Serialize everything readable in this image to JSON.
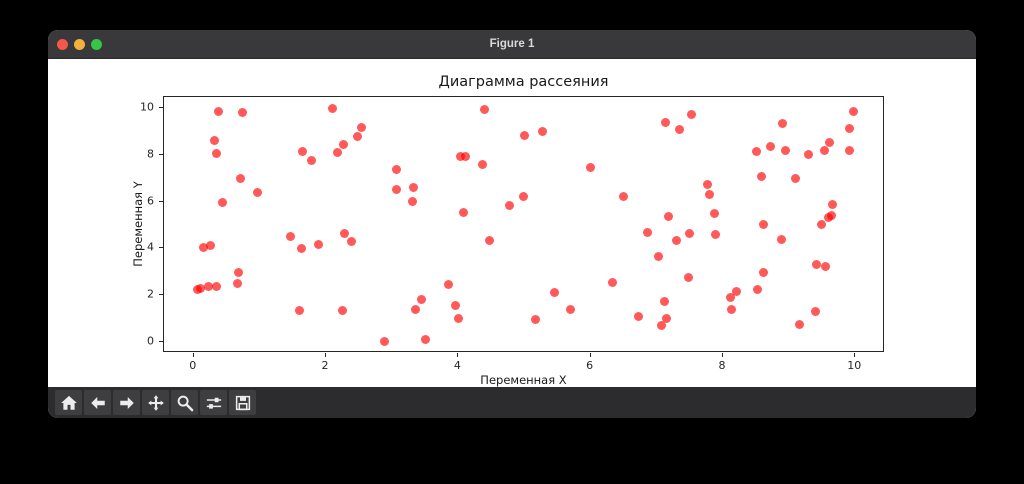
{
  "window": {
    "title": "Figure 1",
    "traffic_lights": {
      "close_color": "#f4564e",
      "minimize_color": "#f2b13c",
      "zoom_color": "#35c648"
    }
  },
  "toolbar": {
    "buttons": [
      {
        "name": "home",
        "icon": "home-icon"
      },
      {
        "name": "back",
        "icon": "arrow-left-icon"
      },
      {
        "name": "forward",
        "icon": "arrow-right-icon"
      },
      {
        "name": "pan",
        "icon": "move-icon"
      },
      {
        "name": "zoom-to-rect",
        "icon": "magnifier-icon"
      },
      {
        "name": "configure-subplots",
        "icon": "sliders-icon"
      },
      {
        "name": "save",
        "icon": "floppy-icon"
      }
    ]
  },
  "chart_data": {
    "type": "scatter",
    "title": "Диаграмма рассеяния",
    "xlabel": "Переменная X",
    "ylabel": "Переменная Y",
    "xlim": [
      -0.45,
      10.45
    ],
    "ylim": [
      -0.45,
      10.45
    ],
    "xticks": [
      0,
      2,
      4,
      6,
      8,
      10
    ],
    "yticks": [
      0,
      2,
      4,
      6,
      8,
      10
    ],
    "grid": false,
    "legend": null,
    "marker_color": "#ff0000",
    "marker_alpha": 0.65,
    "points": [
      [
        0.38,
        9.84
      ],
      [
        0.74,
        9.77
      ],
      [
        2.1,
        9.94
      ],
      [
        4.39,
        9.9
      ],
      [
        2.54,
        9.17
      ],
      [
        2.47,
        8.75
      ],
      [
        5.0,
        8.8
      ],
      [
        0.31,
        8.58
      ],
      [
        0.34,
        8.06
      ],
      [
        1.64,
        8.14
      ],
      [
        2.17,
        8.08
      ],
      [
        2.27,
        8.42
      ],
      [
        1.78,
        7.76
      ],
      [
        4.04,
        7.93
      ],
      [
        4.11,
        7.9
      ],
      [
        4.36,
        7.59
      ],
      [
        3.06,
        7.36
      ],
      [
        0.71,
        7.0
      ],
      [
        3.06,
        6.51
      ],
      [
        3.32,
        6.6
      ],
      [
        0.97,
        6.4
      ],
      [
        3.3,
        5.98
      ],
      [
        0.44,
        5.97
      ],
      [
        4.98,
        6.21
      ],
      [
        4.77,
        5.82
      ],
      [
        4.08,
        5.53
      ],
      [
        5.27,
        8.98
      ],
      [
        7.13,
        9.37
      ],
      [
        7.34,
        9.08
      ],
      [
        7.52,
        9.7
      ],
      [
        8.9,
        9.34
      ],
      [
        9.98,
        9.83
      ],
      [
        9.92,
        9.13
      ],
      [
        8.5,
        8.15
      ],
      [
        8.72,
        8.35
      ],
      [
        8.95,
        8.19
      ],
      [
        9.3,
        8.02
      ],
      [
        9.61,
        8.51
      ],
      [
        9.54,
        8.18
      ],
      [
        9.92,
        8.19
      ],
      [
        6.0,
        7.46
      ],
      [
        8.59,
        7.06
      ],
      [
        9.09,
        6.99
      ],
      [
        7.76,
        6.74
      ],
      [
        7.8,
        6.3
      ],
      [
        6.49,
        6.2
      ],
      [
        7.87,
        5.5
      ],
      [
        7.17,
        5.35
      ],
      [
        9.66,
        5.88
      ],
      [
        9.59,
        5.33
      ],
      [
        9.64,
        5.41
      ],
      [
        9.49,
        5.02
      ],
      [
        0.15,
        4.05
      ],
      [
        0.26,
        4.12
      ],
      [
        0.68,
        2.97
      ],
      [
        0.66,
        2.53
      ],
      [
        0.05,
        2.26
      ],
      [
        0.1,
        2.3
      ],
      [
        0.22,
        2.4
      ],
      [
        0.34,
        2.38
      ],
      [
        1.46,
        4.52
      ],
      [
        1.63,
        4.0
      ],
      [
        1.88,
        4.17
      ],
      [
        2.28,
        4.65
      ],
      [
        2.39,
        4.29
      ],
      [
        1.6,
        1.38
      ],
      [
        2.25,
        1.36
      ],
      [
        2.88,
        0.02
      ],
      [
        3.35,
        1.39
      ],
      [
        3.45,
        1.84
      ],
      [
        3.51,
        0.14
      ],
      [
        3.85,
        2.47
      ],
      [
        3.95,
        1.58
      ],
      [
        4.0,
        1.02
      ],
      [
        4.47,
        4.35
      ],
      [
        8.62,
        5.02
      ],
      [
        6.86,
        4.69
      ],
      [
        7.5,
        4.62
      ],
      [
        7.3,
        4.32
      ],
      [
        7.89,
        4.58
      ],
      [
        8.88,
        4.39
      ],
      [
        7.03,
        3.66
      ],
      [
        9.42,
        3.33
      ],
      [
        9.55,
        3.23
      ],
      [
        7.48,
        2.78
      ],
      [
        8.61,
        2.97
      ],
      [
        6.33,
        2.55
      ],
      [
        8.52,
        2.25
      ],
      [
        5.46,
        2.14
      ],
      [
        8.2,
        2.18
      ],
      [
        8.12,
        1.91
      ],
      [
        5.7,
        1.42
      ],
      [
        8.13,
        1.42
      ],
      [
        7.12,
        1.76
      ],
      [
        6.73,
        1.1
      ],
      [
        7.15,
        1.03
      ],
      [
        7.07,
        0.72
      ],
      [
        9.4,
        1.32
      ],
      [
        9.16,
        0.76
      ],
      [
        5.16,
        0.96
      ]
    ]
  }
}
